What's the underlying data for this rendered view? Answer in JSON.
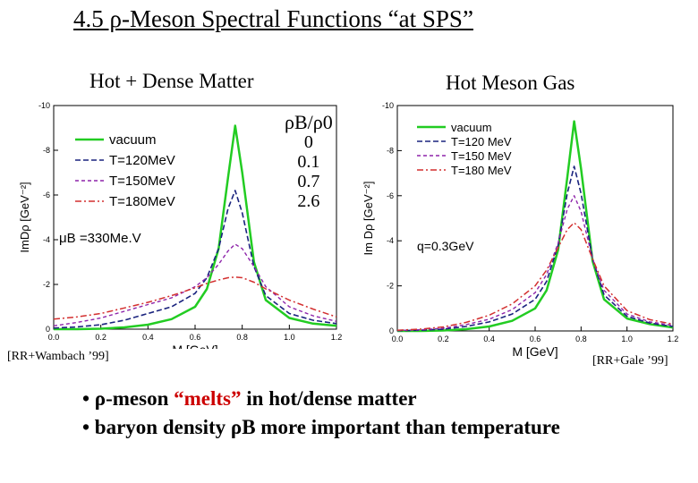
{
  "title": "4.5 ρ-Meson Spectral Functions “at SPS”",
  "left_heading": "Hot + Dense Matter",
  "right_heading": "Hot Meson Gas",
  "ratio_header": "ρB/ρ0",
  "ratio_values": [
    "0",
    "0.1",
    "0.7",
    "2.6"
  ],
  "left_mu_label": "μB =330Me.V",
  "right_q_label": "q=0.3GeV",
  "left_ref": "[RR+Wambach ’99]",
  "right_ref": "[RR+Gale ’99]",
  "bullets": {
    "line1_pre": "• ρ-meson ",
    "line1_hl": "“melts”",
    "line1_post": "  in hot/dense matter",
    "line2": "• baryon density ρB more important than temperature"
  },
  "colors": {
    "vacuum": "#22cc22",
    "t120": "#1a237e",
    "t150": "#8e24aa",
    "t180": "#d32f2f"
  },
  "chart_data": [
    {
      "type": "line",
      "title": "Hot + Dense Matter",
      "xlabel": "M [GeV]",
      "ylabel": "ImDρ [GeV⁻²]",
      "xlim": [
        0.0,
        1.2
      ],
      "ylim": [
        -10,
        0
      ],
      "xticks": [
        "0.0",
        "0.2",
        "0.4",
        "0.6",
        "0.8",
        "1.0",
        "1.2"
      ],
      "yticks": [
        "-10",
        "-8",
        "-6",
        "-4",
        "-2",
        "0"
      ],
      "x": [
        0.0,
        0.1,
        0.2,
        0.3,
        0.4,
        0.5,
        0.6,
        0.65,
        0.7,
        0.74,
        0.77,
        0.8,
        0.85,
        0.9,
        1.0,
        1.1,
        1.2
      ],
      "series": [
        {
          "name": "vacuum",
          "values": [
            0,
            0,
            -0.02,
            -0.08,
            -0.2,
            -0.45,
            -1.0,
            -1.8,
            -3.6,
            -6.8,
            -9.1,
            -7.0,
            -3.0,
            -1.3,
            -0.5,
            -0.25,
            -0.15
          ]
        },
        {
          "name": "T=120MeV",
          "values": [
            -0.05,
            -0.1,
            -0.2,
            -0.4,
            -0.7,
            -1.0,
            -1.6,
            -2.3,
            -3.6,
            -5.4,
            -6.2,
            -5.2,
            -2.8,
            -1.5,
            -0.7,
            -0.4,
            -0.25
          ]
        },
        {
          "name": "T=150MeV",
          "values": [
            -0.15,
            -0.3,
            -0.5,
            -0.8,
            -1.1,
            -1.4,
            -1.9,
            -2.3,
            -2.9,
            -3.5,
            -3.8,
            -3.6,
            -2.8,
            -1.9,
            -1.0,
            -0.6,
            -0.35
          ]
        },
        {
          "name": "T=180MeV",
          "values": [
            -0.45,
            -0.55,
            -0.7,
            -0.95,
            -1.2,
            -1.5,
            -1.85,
            -2.05,
            -2.2,
            -2.3,
            -2.33,
            -2.3,
            -2.1,
            -1.8,
            -1.3,
            -0.9,
            -0.55
          ]
        }
      ]
    },
    {
      "type": "line",
      "title": "Hot Meson Gas",
      "xlabel": "M [GeV]",
      "ylabel": "Im Dρ [GeV⁻²]",
      "xlim": [
        0.0,
        1.2
      ],
      "ylim": [
        -10,
        0
      ],
      "xticks": [
        "0.0",
        "0.2",
        "0.4",
        "0.6",
        "0.8",
        "1.0",
        "1.2"
      ],
      "yticks": [
        "-10",
        "-8",
        "-6",
        "-4",
        "-2",
        "0"
      ],
      "x": [
        0.0,
        0.1,
        0.2,
        0.3,
        0.4,
        0.5,
        0.6,
        0.65,
        0.7,
        0.74,
        0.77,
        0.8,
        0.85,
        0.9,
        1.0,
        1.1,
        1.2
      ],
      "series": [
        {
          "name": "vacuum",
          "values": [
            0,
            0,
            -0.02,
            -0.08,
            -0.2,
            -0.45,
            -1.0,
            -1.8,
            -3.6,
            -6.8,
            -9.3,
            -7.2,
            -3.1,
            -1.4,
            -0.55,
            -0.3,
            -0.15
          ]
        },
        {
          "name": "T=120 MeV",
          "values": [
            -0.01,
            -0.03,
            -0.08,
            -0.2,
            -0.4,
            -0.75,
            -1.4,
            -2.2,
            -3.8,
            -6.1,
            -7.3,
            -6.1,
            -3.2,
            -1.6,
            -0.65,
            -0.35,
            -0.2
          ]
        },
        {
          "name": "T=150 MeV",
          "values": [
            -0.02,
            -0.05,
            -0.12,
            -0.28,
            -0.52,
            -0.95,
            -1.7,
            -2.5,
            -3.9,
            -5.4,
            -6.0,
            -5.3,
            -3.2,
            -1.8,
            -0.75,
            -0.4,
            -0.25
          ]
        },
        {
          "name": "T=180 MeV",
          "values": [
            -0.03,
            -0.08,
            -0.18,
            -0.38,
            -0.7,
            -1.2,
            -2.0,
            -2.7,
            -3.7,
            -4.5,
            -4.8,
            -4.5,
            -3.2,
            -2.0,
            -0.9,
            -0.5,
            -0.3
          ]
        }
      ]
    }
  ]
}
